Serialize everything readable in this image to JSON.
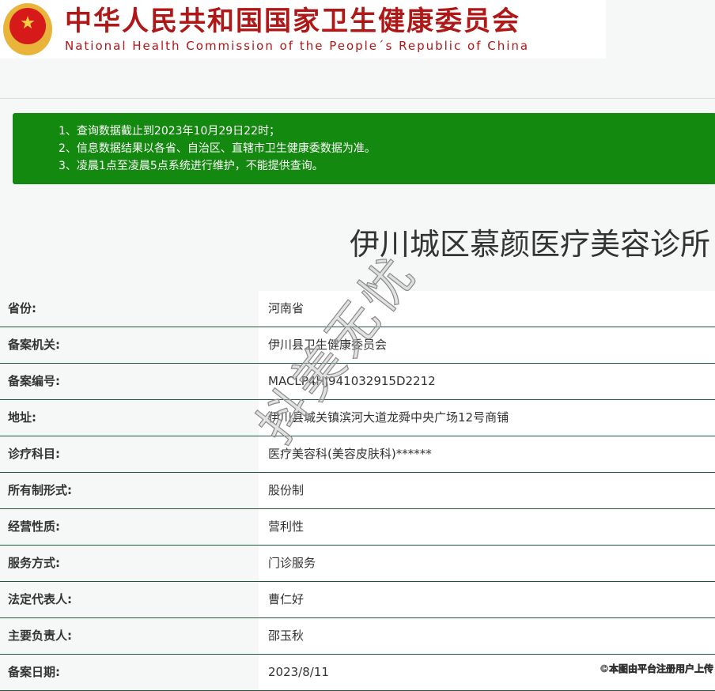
{
  "header": {
    "title_cn": "中华人民共和国国家卫生健康委员会",
    "title_en": "National Health Commission of the People´s Republic of China"
  },
  "notice": [
    "1、查询数据截止到2023年10月29日22时；",
    "2、信息数据结果以各省、自治区、直辖市卫生健康委数据为准。",
    "3、凌晨1点至凌晨5点系统进行维护，不能提供查询。"
  ],
  "institution": {
    "name": "伊川城区慕颜医疗美容诊所"
  },
  "rows": [
    {
      "label": "省份:",
      "value": "河南省"
    },
    {
      "label": "备案机关:",
      "value": "伊川县卫生健康委员会"
    },
    {
      "label": "备案编号:",
      "value": "MACLP4HJ941032915D2212"
    },
    {
      "label": "地址:",
      "value": "伊川县城关镇滨河大道龙舜中央广场12号商铺"
    },
    {
      "label": "诊疗科目:",
      "value": "医疗美容科(美容皮肤科)******"
    },
    {
      "label": "所有制形式:",
      "value": "股份制"
    },
    {
      "label": "经营性质:",
      "value": "营利性"
    },
    {
      "label": "服务方式:",
      "value": "门诊服务"
    },
    {
      "label": "法定代表人:",
      "value": "曹仁好"
    },
    {
      "label": "主要负责人:",
      "value": "邵玉秋"
    },
    {
      "label": "备案日期:",
      "value": "2023/8/11"
    }
  ],
  "watermark": "抖美无忧",
  "credit": "©本图由平台注册用户上传",
  "colors": {
    "brand_red": "#b01717",
    "notice_green": "#14890f",
    "row_border": "#1f5a3a"
  }
}
